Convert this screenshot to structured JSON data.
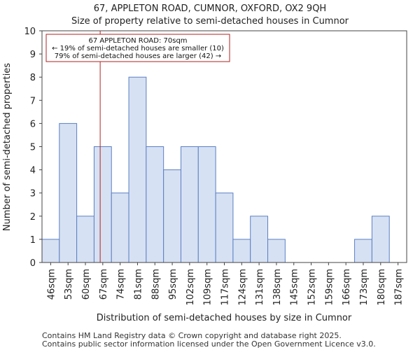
{
  "title_line1": "67, APPLETON ROAD, CUMNOR, OXFORD, OX2 9QH",
  "title_line2": "Size of property relative to semi-detached houses in Cumnor",
  "footer_line1": "Contains HM Land Registry data © Crown copyright and database right 2025.",
  "footer_line2": "Contains public sector information licensed under the Open Government Licence v3.0.",
  "chart_data": {
    "type": "bar",
    "title": "Size of property relative to semi-detached houses in Cumnor",
    "xlabel": "Distribution of semi-detached houses by size in Cumnor",
    "ylabel": "Number of semi-detached properties",
    "categories": [
      "46sqm",
      "53sqm",
      "60sqm",
      "67sqm",
      "74sqm",
      "81sqm",
      "88sqm",
      "95sqm",
      "102sqm",
      "109sqm",
      "117sqm",
      "124sqm",
      "131sqm",
      "138sqm",
      "145sqm",
      "152sqm",
      "159sqm",
      "166sqm",
      "173sqm",
      "180sqm",
      "187sqm"
    ],
    "values": [
      1,
      6,
      2,
      5,
      3,
      8,
      5,
      4,
      5,
      5,
      3,
      1,
      2,
      1,
      0,
      0,
      0,
      0,
      1,
      2,
      0
    ],
    "ylim": [
      0,
      10
    ],
    "yticks": [
      0,
      1,
      2,
      3,
      4,
      5,
      6,
      7,
      8,
      9,
      10
    ],
    "grid": false,
    "bar_fill": "#d6e1f3",
    "bar_edge": "#5b7fc4",
    "marker": {
      "value_sqm": 70,
      "color": "#b22222",
      "position_index": 3.35
    },
    "annotation": {
      "line1": "67 APPLETON ROAD: 70sqm",
      "line2": "← 19% of semi-detached houses are smaller (10)",
      "line3": "79% of semi-detached houses are larger (42) →",
      "border_color": "#b22222"
    }
  }
}
